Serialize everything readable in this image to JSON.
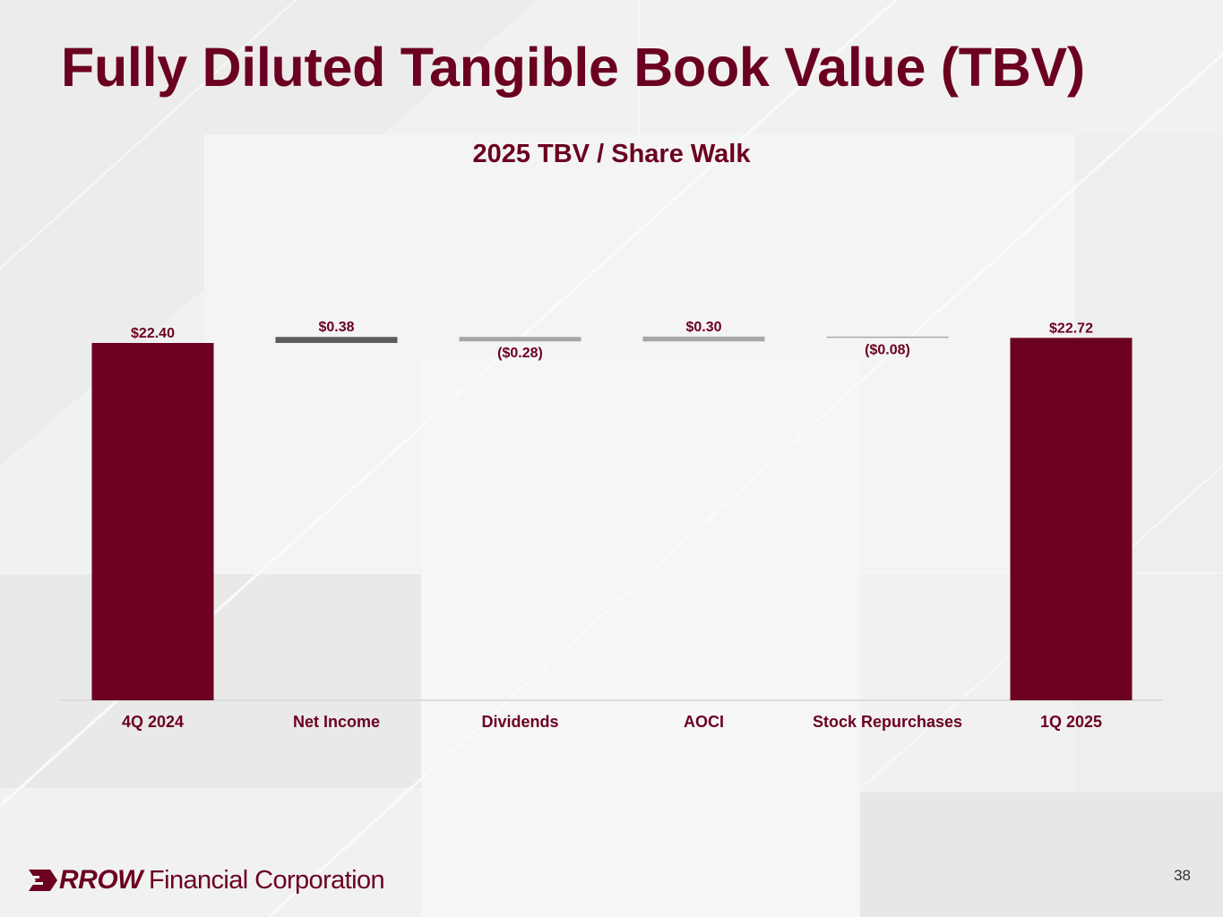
{
  "slide": {
    "title": "Fully Diluted Tangible Book Value (TBV)",
    "page_number": "38"
  },
  "logo": {
    "word": "RROW",
    "rest": "Financial Corporation"
  },
  "colors": {
    "brand": "#6b0020",
    "increase_dark": "#5d5d5d",
    "change_light": "#a6a6a6",
    "background": "#f1f1f1"
  },
  "chart_data": {
    "type": "bar",
    "subtype": "waterfall",
    "title": "2025 TBV / Share Walk",
    "categories": [
      "4Q 2024",
      "Net Income",
      "Dividends",
      "AOCI",
      "Stock Repurchases",
      "1Q 2025"
    ],
    "values": [
      22.4,
      0.38,
      -0.28,
      0.3,
      -0.08,
      22.72
    ],
    "kinds": [
      "total",
      "delta",
      "delta",
      "delta",
      "delta",
      "total"
    ],
    "data_labels": [
      "$22.40",
      "$0.38",
      "($0.28)",
      "$0.30",
      "($0.08)",
      "$22.72"
    ],
    "bar_colors": [
      "#6b0020",
      "#5d5d5d",
      "#a6a6a6",
      "#a6a6a6",
      "#a6a6a6",
      "#6b0020"
    ],
    "xlabel": "",
    "ylabel": "",
    "grid": false,
    "legend": "none"
  }
}
